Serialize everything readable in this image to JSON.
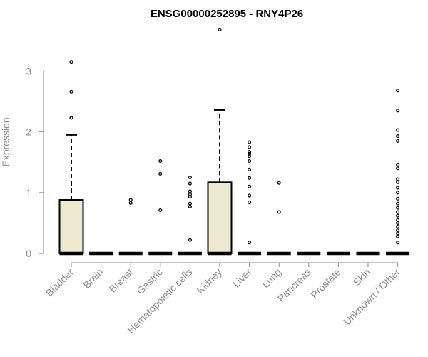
{
  "chart_data": {
    "type": "box",
    "title": "ENSG00000252895 - RNY4P26",
    "xlabel": "",
    "ylabel": "Expression",
    "ylim": [
      0,
      3.7
    ],
    "yticks": [
      0,
      1,
      2,
      3
    ],
    "colors": {
      "box_fill": "#ede8d0",
      "box_stroke": "#000000",
      "axis": "#8a8a8a",
      "title": "#000000"
    },
    "categories": [
      "Bladder",
      "Brain",
      "Breast",
      "Gastric",
      "Hematopoietic cells",
      "Kidney",
      "Liver",
      "Lung",
      "Pancreas",
      "Prostate",
      "Skin",
      "Unknown / Other"
    ],
    "boxes": [
      {
        "category": "Bladder",
        "q1": 0,
        "median": 0,
        "q3": 0.88,
        "whisker_low": 0,
        "whisker_high": 1.95,
        "outliers": [
          2.23,
          2.66,
          3.15
        ]
      },
      {
        "category": "Brain",
        "q1": 0,
        "median": 0,
        "q3": 0,
        "whisker_low": 0,
        "whisker_high": 0,
        "outliers": []
      },
      {
        "category": "Breast",
        "q1": 0,
        "median": 0,
        "q3": 0,
        "whisker_low": 0,
        "whisker_high": 0,
        "outliers": [
          0.83,
          0.88
        ]
      },
      {
        "category": "Gastric",
        "q1": 0,
        "median": 0,
        "q3": 0,
        "whisker_low": 0,
        "whisker_high": 0,
        "outliers": [
          0.71,
          1.31,
          1.52
        ]
      },
      {
        "category": "Hematopoietic cells",
        "q1": 0,
        "median": 0,
        "q3": 0,
        "whisker_low": 0,
        "whisker_high": 0,
        "outliers": [
          0.22,
          0.77,
          0.82,
          0.93,
          0.97,
          1.02,
          1.15,
          1.25
        ]
      },
      {
        "category": "Kidney",
        "q1": 0,
        "median": 0,
        "q3": 1.17,
        "whisker_low": 0,
        "whisker_high": 2.36,
        "outliers": [
          3.68
        ]
      },
      {
        "category": "Liver",
        "q1": 0,
        "median": 0,
        "q3": 0,
        "whisker_low": 0,
        "whisker_high": 0,
        "outliers": [
          0.18,
          0.84,
          0.95,
          1.1,
          1.24,
          1.38,
          1.52,
          1.6,
          1.64,
          1.67,
          1.75,
          1.83
        ]
      },
      {
        "category": "Lung",
        "q1": 0,
        "median": 0,
        "q3": 0,
        "whisker_low": 0,
        "whisker_high": 0,
        "outliers": [
          0.68,
          1.16
        ]
      },
      {
        "category": "Pancreas",
        "q1": 0,
        "median": 0,
        "q3": 0,
        "whisker_low": 0,
        "whisker_high": 0,
        "outliers": []
      },
      {
        "category": "Prostate",
        "q1": 0,
        "median": 0,
        "q3": 0,
        "whisker_low": 0,
        "whisker_high": 0,
        "outliers": []
      },
      {
        "category": "Skin",
        "q1": 0,
        "median": 0,
        "q3": 0,
        "whisker_low": 0,
        "whisker_high": 0,
        "outliers": []
      },
      {
        "category": "Unknown / Other",
        "q1": 0,
        "median": 0,
        "q3": 0,
        "whisker_low": 0,
        "whisker_high": 0,
        "outliers": [
          0.18,
          0.28,
          0.33,
          0.38,
          0.44,
          0.5,
          0.55,
          0.62,
          0.68,
          0.75,
          0.82,
          0.9,
          1.0,
          1.08,
          1.17,
          1.22,
          1.4,
          1.46,
          1.85,
          1.93,
          2.03,
          2.35,
          2.68
        ]
      }
    ]
  }
}
